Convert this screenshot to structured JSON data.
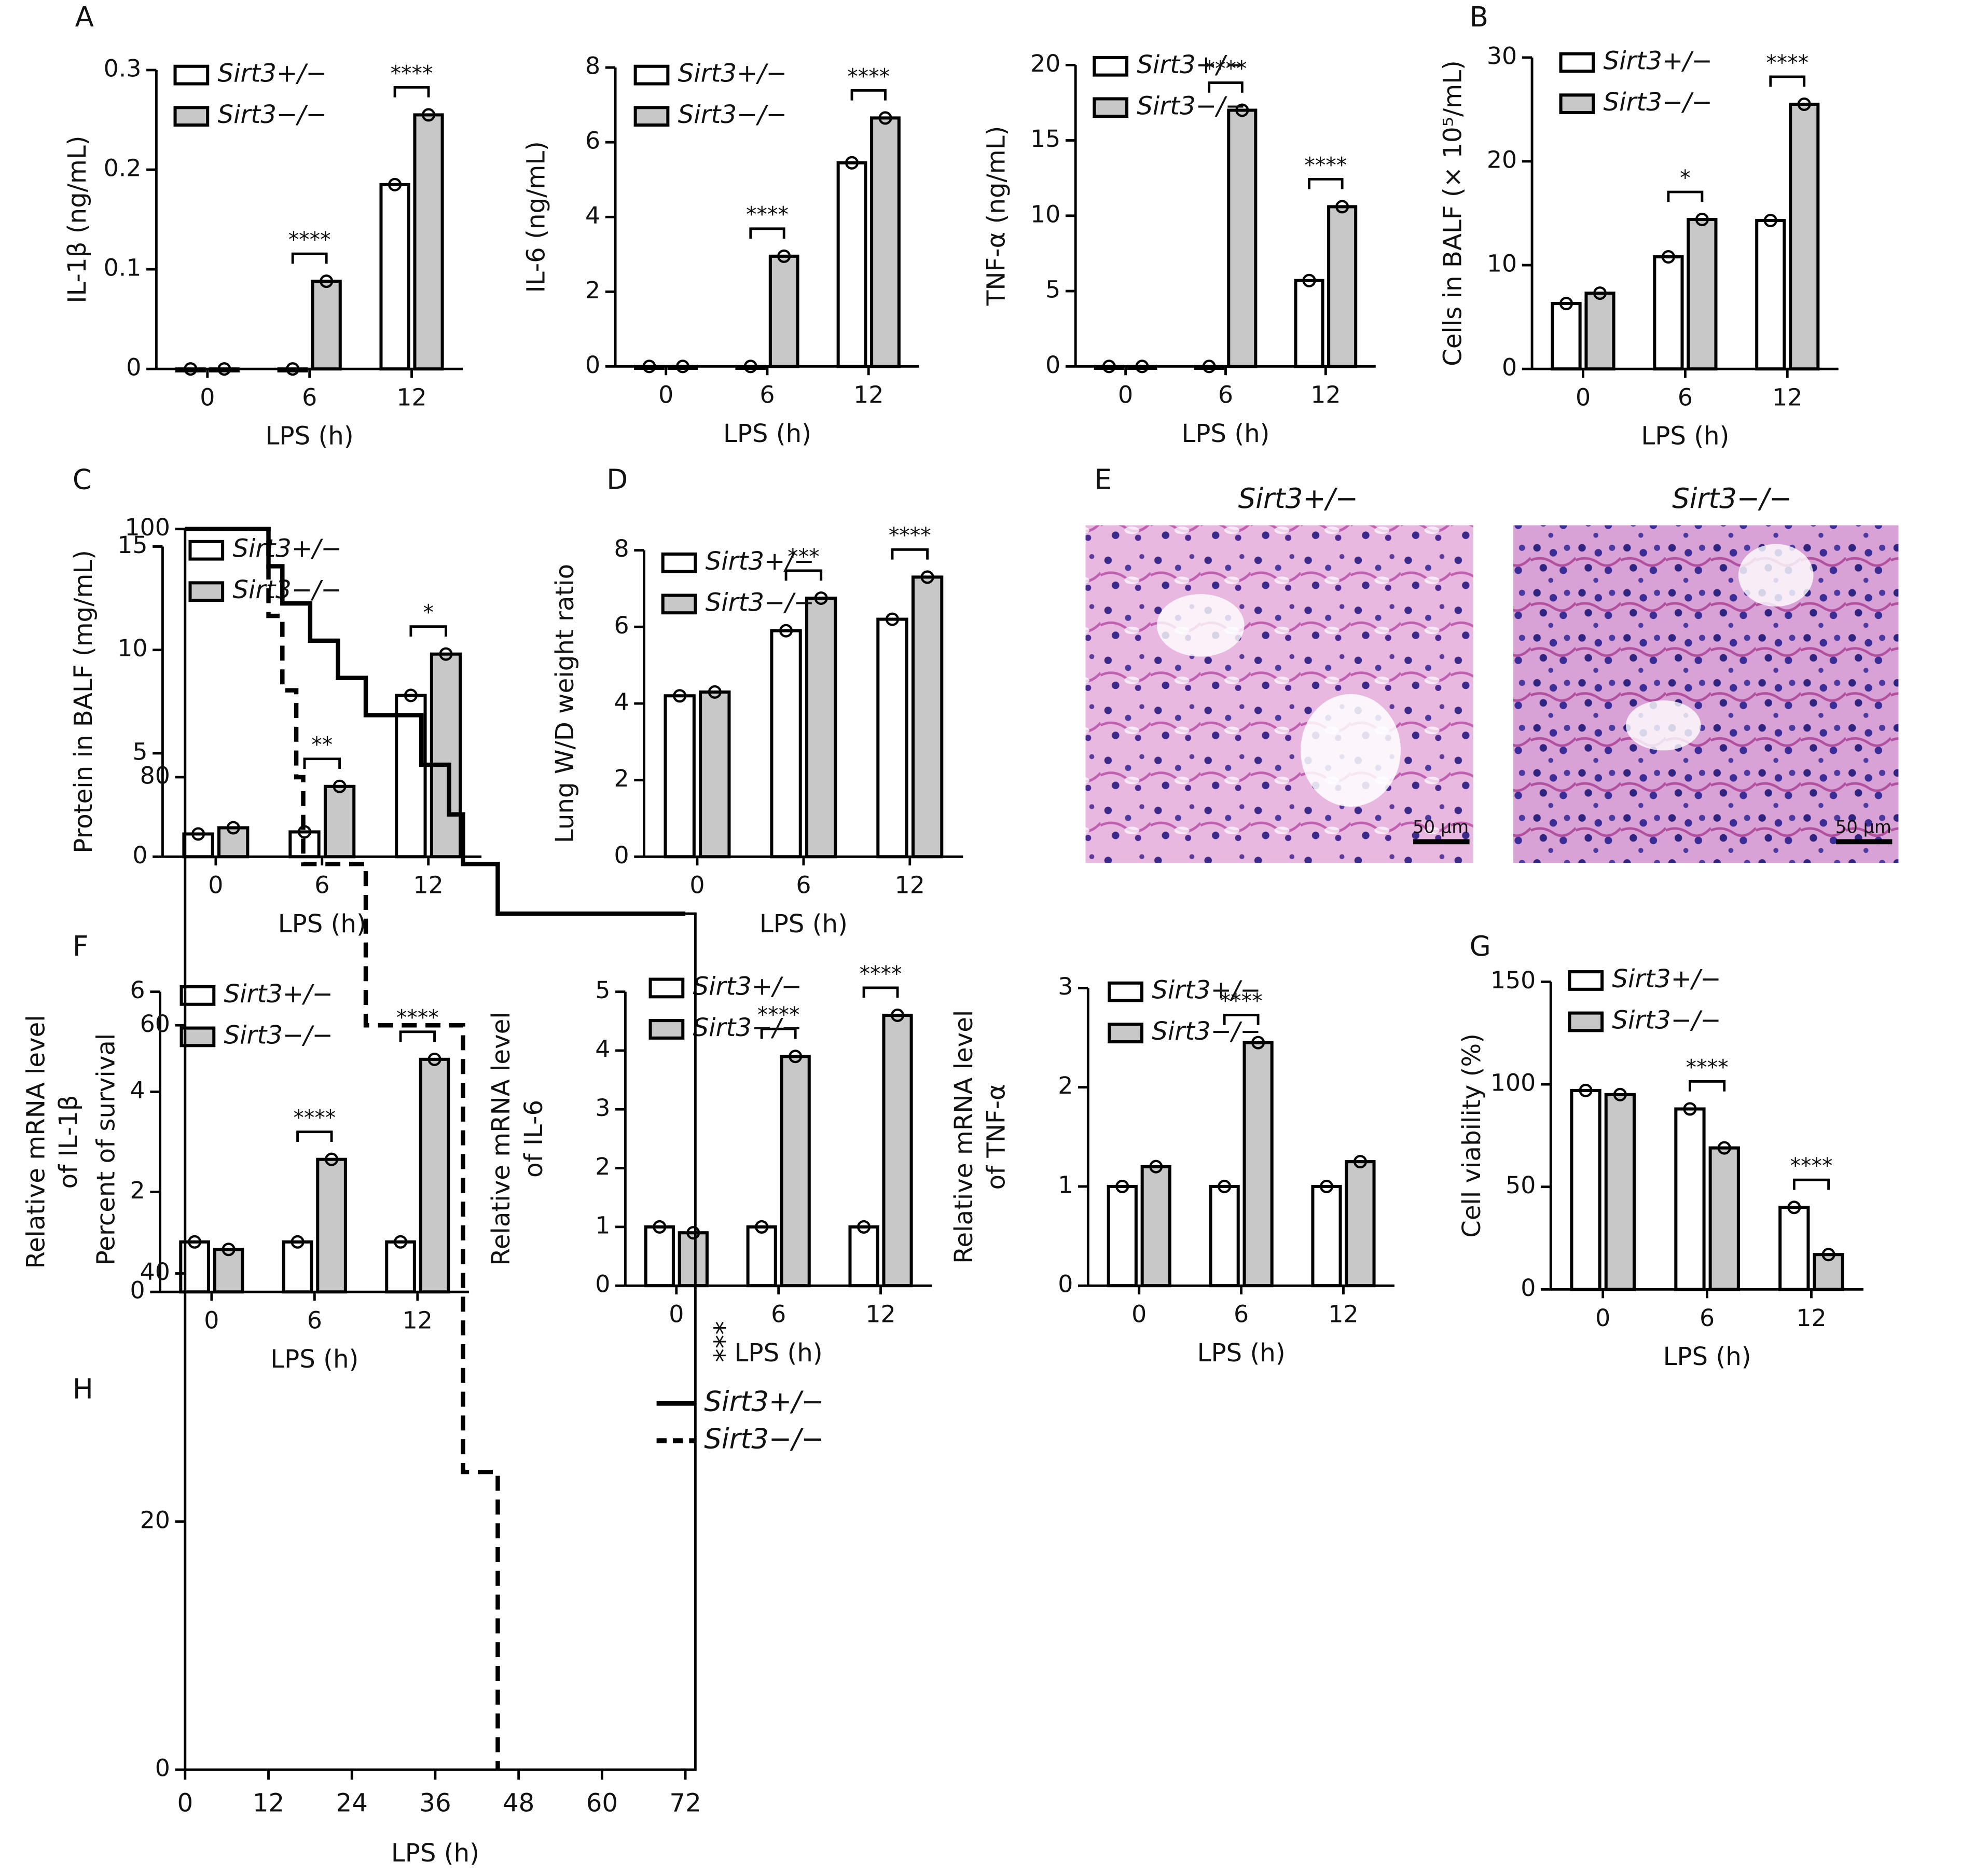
{
  "chart_data": [
    {
      "type": "bar",
      "panel": "A",
      "ylabel": [
        "IL-1β (ng/mL)"
      ],
      "xlabel": "LPS (h)",
      "categories": [
        "0",
        "6",
        "12"
      ],
      "series": [
        {
          "name": "Sirt3+/−",
          "color": "#ffffff",
          "values": [
            0,
            0,
            0.185
          ]
        },
        {
          "name": "Sirt3−/−",
          "color": "#c8c8c8",
          "values": [
            0,
            0.088,
            0.255
          ]
        }
      ],
      "ylim": [
        0,
        0.3
      ],
      "yticks": [
        0,
        0.1,
        0.2,
        0.3
      ],
      "significance": [
        null,
        "****",
        "****"
      ]
    },
    {
      "type": "bar",
      "ylabel": [
        "IL-6 (ng/mL)"
      ],
      "xlabel": "LPS (h)",
      "categories": [
        "0",
        "6",
        "12"
      ],
      "series": [
        {
          "name": "Sirt3+/−",
          "color": "#ffffff",
          "values": [
            0,
            0,
            5.45
          ]
        },
        {
          "name": "Sirt3−/−",
          "color": "#c8c8c8",
          "values": [
            0,
            2.95,
            6.65
          ]
        }
      ],
      "ylim": [
        0,
        8
      ],
      "yticks": [
        0,
        2,
        4,
        6,
        8
      ],
      "significance": [
        null,
        "****",
        "****"
      ]
    },
    {
      "type": "bar",
      "ylabel": [
        "TNF-α (ng/mL)"
      ],
      "xlabel": "LPS (h)",
      "categories": [
        "0",
        "6",
        "12"
      ],
      "series": [
        {
          "name": "Sirt3+/−",
          "color": "#ffffff",
          "values": [
            0,
            0,
            5.7
          ]
        },
        {
          "name": "Sirt3−/−",
          "color": "#c8c8c8",
          "values": [
            0,
            17,
            10.6
          ]
        }
      ],
      "ylim": [
        0,
        20
      ],
      "yticks": [
        0,
        5,
        10,
        15,
        20
      ],
      "significance": [
        null,
        "****",
        "****"
      ]
    },
    {
      "type": "bar",
      "panel": "B",
      "ylabel": [
        "Cells in BALF (× 10⁵/mL)"
      ],
      "xlabel": "LPS (h)",
      "categories": [
        "0",
        "6",
        "12"
      ],
      "series": [
        {
          "name": "Sirt3+/−",
          "color": "#ffffff",
          "values": [
            6.3,
            10.8,
            14.3
          ]
        },
        {
          "name": "Sirt3−/−",
          "color": "#c8c8c8",
          "values": [
            7.3,
            14.4,
            25.5
          ]
        }
      ],
      "ylim": [
        0,
        30
      ],
      "yticks": [
        0,
        10,
        20,
        30
      ],
      "significance": [
        null,
        "*",
        "****"
      ]
    },
    {
      "type": "bar",
      "panel": "C",
      "ylabel": [
        "Protein in BALF (mg/mL)"
      ],
      "xlabel": "LPS (h)",
      "categories": [
        "0",
        "6",
        "12"
      ],
      "series": [
        {
          "name": "Sirt3+/−",
          "color": "#ffffff",
          "values": [
            1.1,
            1.2,
            7.8
          ]
        },
        {
          "name": "Sirt3−/−",
          "color": "#c8c8c8",
          "values": [
            1.4,
            3.4,
            9.8
          ]
        }
      ],
      "ylim": [
        0,
        15
      ],
      "yticks": [
        0,
        5,
        10,
        15
      ],
      "significance": [
        null,
        "**",
        "*"
      ]
    },
    {
      "type": "bar",
      "panel": "D",
      "ylabel": [
        "Lung W/D weight ratio"
      ],
      "xlabel": "LPS (h)",
      "categories": [
        "0",
        "6",
        "12"
      ],
      "series": [
        {
          "name": "Sirt3+/−",
          "color": "#ffffff",
          "values": [
            4.2,
            5.9,
            6.2
          ]
        },
        {
          "name": "Sirt3−/−",
          "color": "#c8c8c8",
          "values": [
            4.3,
            6.75,
            7.3
          ]
        }
      ],
      "ylim": [
        0,
        8
      ],
      "yticks": [
        0,
        2,
        4,
        6,
        8
      ],
      "significance": [
        null,
        "***",
        "****"
      ]
    },
    {
      "type": "bar",
      "panel": "F",
      "ylabel": [
        "Relative mRNA level",
        "of IL-1β"
      ],
      "xlabel": "LPS (h)",
      "categories": [
        "0",
        "6",
        "12"
      ],
      "series": [
        {
          "name": "Sirt3+/−",
          "color": "#ffffff",
          "values": [
            1,
            1,
            1
          ]
        },
        {
          "name": "Sirt3−/−",
          "color": "#c8c8c8",
          "values": [
            0.85,
            2.65,
            4.65
          ]
        }
      ],
      "ylim": [
        0,
        6
      ],
      "yticks": [
        0,
        2,
        4,
        6
      ],
      "significance": [
        null,
        "****",
        "****"
      ]
    },
    {
      "type": "bar",
      "ylabel": [
        "Relative mRNA level",
        "of IL-6"
      ],
      "xlabel": "LPS (h)",
      "categories": [
        "0",
        "6",
        "12"
      ],
      "series": [
        {
          "name": "Sirt3+/−",
          "color": "#ffffff",
          "values": [
            1,
            1,
            1
          ]
        },
        {
          "name": "Sirt3−/−",
          "color": "#c8c8c8",
          "values": [
            0.9,
            3.9,
            4.6
          ]
        }
      ],
      "ylim": [
        0,
        5
      ],
      "yticks": [
        0,
        1,
        2,
        3,
        4,
        5
      ],
      "significance": [
        null,
        "****",
        "****"
      ]
    },
    {
      "type": "bar",
      "ylabel": [
        "Relative mRNA level",
        "of TNF-α"
      ],
      "xlabel": "LPS (h)",
      "categories": [
        "0",
        "6",
        "12"
      ],
      "series": [
        {
          "name": "Sirt3+/−",
          "color": "#ffffff",
          "values": [
            1,
            1,
            1
          ]
        },
        {
          "name": "Sirt3−/−",
          "color": "#c8c8c8",
          "values": [
            1.2,
            2.45,
            1.25
          ]
        }
      ],
      "ylim": [
        0,
        3
      ],
      "yticks": [
        0,
        1,
        2,
        3
      ],
      "significance": [
        null,
        "****",
        null
      ]
    },
    {
      "type": "bar",
      "panel": "G",
      "ylabel": [
        "Cell viability (%)"
      ],
      "xlabel": "LPS (h)",
      "categories": [
        "0",
        "6",
        "12"
      ],
      "series": [
        {
          "name": "Sirt3+/−",
          "color": "#ffffff",
          "values": [
            97,
            88,
            40
          ]
        },
        {
          "name": "Sirt3−/−",
          "color": "#c8c8c8",
          "values": [
            95,
            69,
            17
          ]
        }
      ],
      "ylim": [
        0,
        150
      ],
      "yticks": [
        0,
        50,
        100,
        150
      ],
      "significance": [
        null,
        "****",
        "****"
      ]
    },
    {
      "type": "line",
      "panel": "H",
      "ylabel": [
        "Percent of survival"
      ],
      "xlabel": "LPS (h)",
      "step": true,
      "series": [
        {
          "name": "Sirt3+/−",
          "color": "#000000",
          "line_style": "solid",
          "x": [
            0,
            12,
            14,
            18,
            22,
            26,
            34,
            38,
            40,
            45,
            72
          ],
          "values": [
            100,
            97,
            94,
            91,
            88,
            85,
            81,
            77,
            73,
            69,
            69
          ]
        },
        {
          "name": "Sirt3−/−",
          "color": "#000000",
          "line_style": "dashed",
          "x": [
            0,
            12,
            14,
            16,
            17,
            26,
            40,
            45
          ],
          "values": [
            100,
            93,
            87,
            80,
            73,
            60,
            24,
            0
          ]
        }
      ],
      "xlim": [
        0,
        72
      ],
      "xticks": [
        0,
        12,
        24,
        36,
        48,
        60,
        72
      ],
      "ylim": [
        0,
        100
      ],
      "yticks": [
        0,
        20,
        40,
        60,
        80,
        100
      ],
      "annotation": "***"
    }
  ],
  "histology": {
    "panel": "E",
    "images": [
      {
        "title": "Sirt3+/−",
        "scale_bar": "50 μm"
      },
      {
        "title": "Sirt3−/−",
        "scale_bar": "50 μm"
      }
    ]
  }
}
